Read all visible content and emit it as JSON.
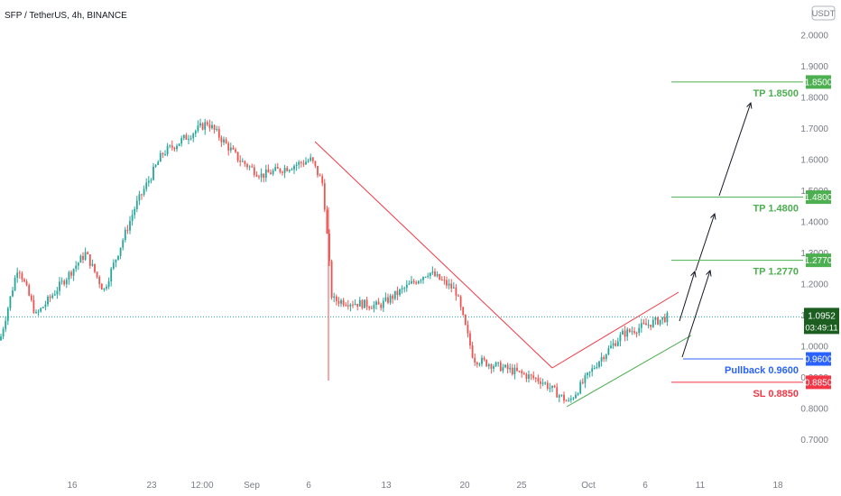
{
  "header": {
    "symbol_title": "SFP / TetherUS, 4h, BINANCE",
    "currency_badge": "USDT"
  },
  "colors": {
    "up": "#26a69a",
    "down": "#ef5350",
    "tp_green": "#4caf50",
    "pullback_blue": "#2962ff",
    "sl_red": "#f23645",
    "price_tag": "#1b5e20",
    "grid_text": "#787b86"
  },
  "chart_data": {
    "type": "candlestick",
    "title": "SFP / TetherUS, 4h, BINANCE",
    "y_axis": {
      "position": "right",
      "range": [
        0.65,
        2.07
      ],
      "ticks": [
        "0.7000",
        "0.8000",
        "0.9000",
        "1.0000",
        "1.1000",
        "1.2000",
        "1.3000",
        "1.4000",
        "1.5000",
        "1.6000",
        "1.7000",
        "1.8000",
        "1.9000",
        "2.0000"
      ]
    },
    "x_axis": {
      "tick_labels": [
        "16",
        "23",
        "12:00",
        "Sep",
        "6",
        "13",
        "20",
        "25",
        "Oct",
        "6",
        "11",
        "18"
      ]
    },
    "price_path_keypoints": [
      {
        "date": "Aug 10",
        "close": 1.02
      },
      {
        "date": "Aug 12",
        "close": 1.26
      },
      {
        "date": "Aug 14",
        "close": 1.1
      },
      {
        "date": "Aug 18",
        "close": 1.3
      },
      {
        "date": "Aug 20",
        "close": 1.18
      },
      {
        "date": "Aug 22",
        "close": 1.45
      },
      {
        "date": "Aug 25",
        "close": 1.62
      },
      {
        "date": "Aug 27",
        "close": 1.72
      },
      {
        "date": "Aug 31",
        "close": 1.6
      },
      {
        "date": "Sep 2",
        "close": 1.55
      },
      {
        "date": "Sep 6",
        "close": 1.6
      },
      {
        "date": "Sep 7",
        "close": 1.52
      },
      {
        "date": "Sep 8",
        "close": 1.15
      },
      {
        "date": "Sep 12",
        "close": 1.13
      },
      {
        "date": "Sep 16",
        "close": 1.24
      },
      {
        "date": "Sep 19",
        "close": 1.18
      },
      {
        "date": "Sep 21",
        "close": 0.96
      },
      {
        "date": "Sep 24",
        "close": 0.92
      },
      {
        "date": "Sep 28",
        "close": 0.89
      },
      {
        "date": "Sep 29",
        "close": 0.82
      },
      {
        "date": "Oct 2",
        "close": 0.96
      },
      {
        "date": "Oct 4",
        "close": 1.04
      },
      {
        "date": "Oct 7",
        "close": 1.0952
      }
    ],
    "current_price": "1.0952",
    "countdown": "03:49:11",
    "levels": [
      {
        "name": "TP 1.8500",
        "value": 1.85,
        "tag": "1.8500",
        "kind": "tp"
      },
      {
        "name": "TP 1.4800",
        "value": 1.48,
        "tag": "1.4800",
        "kind": "tp"
      },
      {
        "name": "TP 1.2770",
        "value": 1.277,
        "tag": "1.2770",
        "kind": "tp"
      },
      {
        "name": "Pullback 0.9600",
        "value": 0.96,
        "tag": "0.9600",
        "kind": "pullback"
      },
      {
        "name": "SL 0.8850",
        "value": 0.885,
        "tag": "0.8850",
        "kind": "sl"
      }
    ],
    "annotations": [
      "red descending trendline from Sep 6 high to Sep 28 low",
      "ascending channel (red upper line, green lower line) from late Sep low",
      "upward projection arrows toward take-profit levels"
    ],
    "grid": false
  }
}
